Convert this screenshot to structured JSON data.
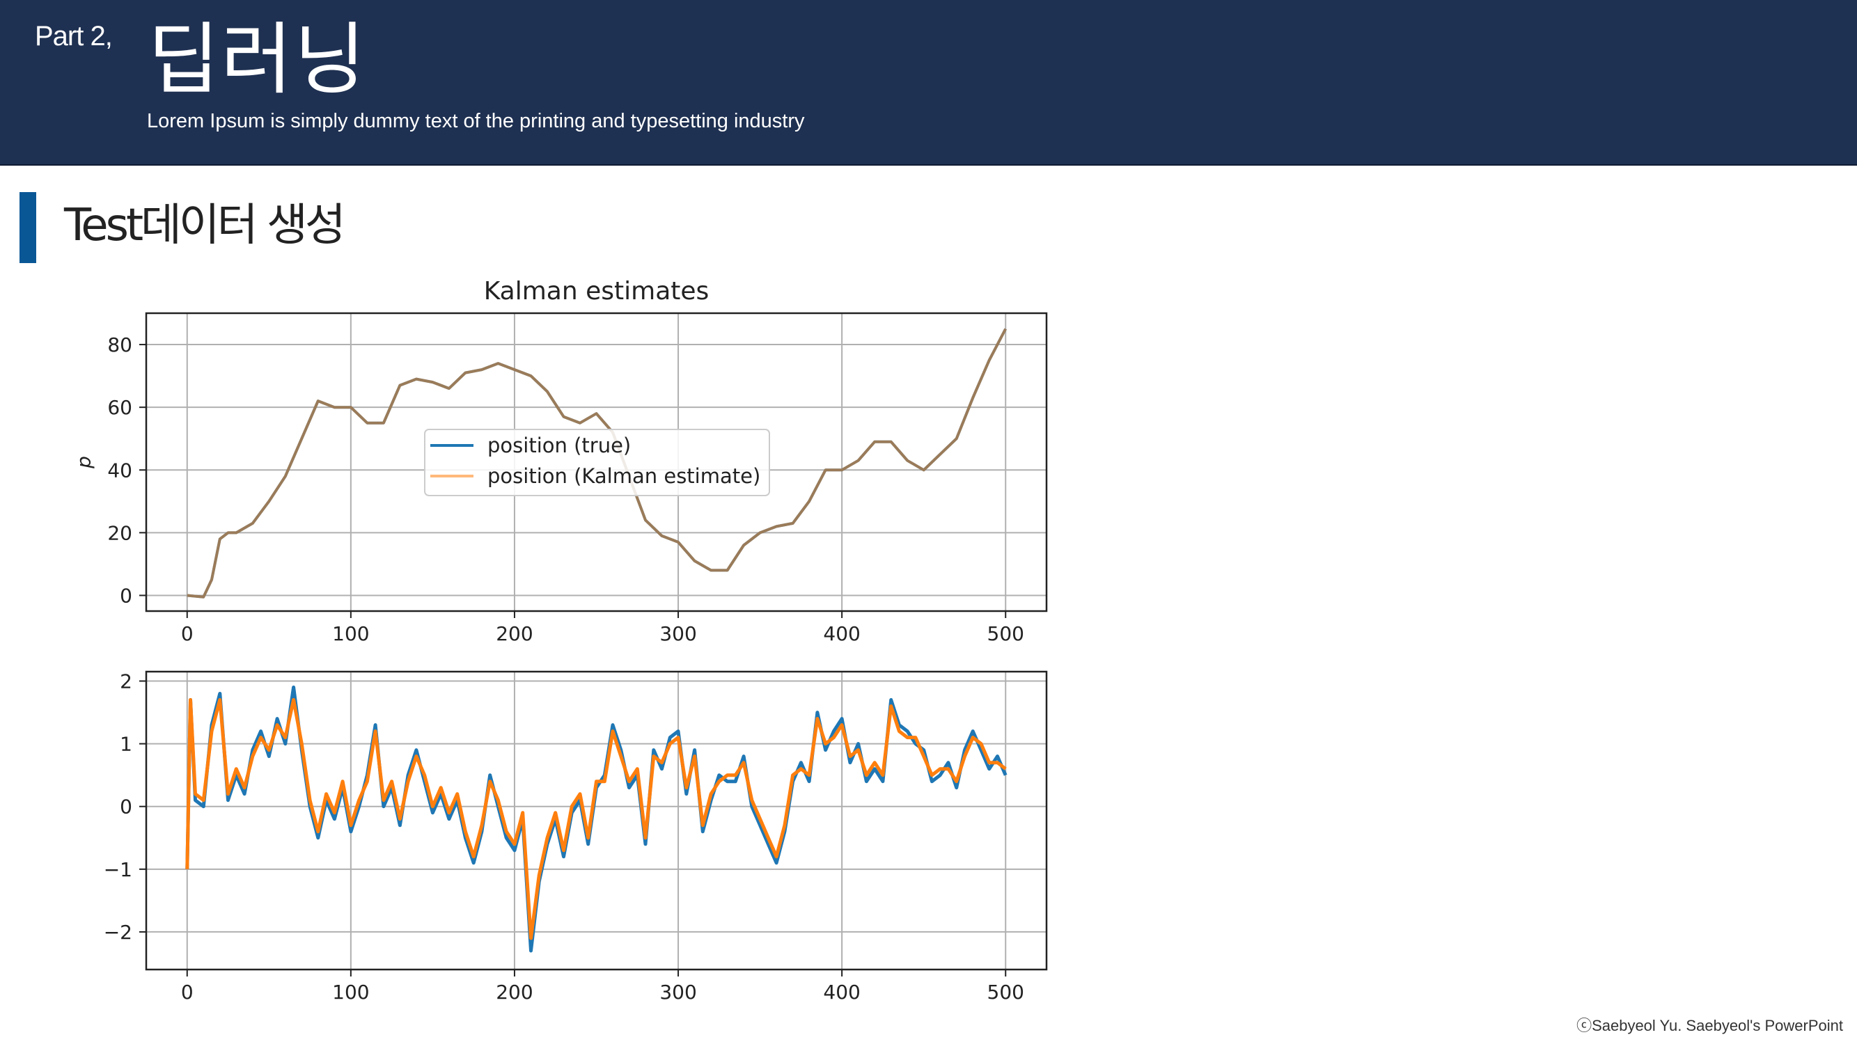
{
  "header": {
    "part_label": "Part 2,",
    "title": "딥러닝",
    "subtitle": "Lorem Ipsum is simply dummy text of the printing and typesetting industry"
  },
  "section": {
    "title": "Test데이터 생성"
  },
  "footer": {
    "copyright": "ⓒSaebyeol Yu. Saebyeol's PowerPoint"
  },
  "colors": {
    "banner": "#1f3152",
    "accent_bar": "#0a5796",
    "series_true": "#1f77b4",
    "series_kalman": "#ff7f0e"
  },
  "chart_data": [
    {
      "type": "line",
      "title": "Kalman estimates",
      "xlabel": "",
      "ylabel": "p",
      "xlim": [
        -25,
        525
      ],
      "ylim": [
        -5,
        90
      ],
      "xticks": [
        0,
        100,
        200,
        300,
        400,
        500
      ],
      "yticks": [
        0,
        20,
        40,
        60,
        80
      ],
      "grid": true,
      "legend_placement": "center",
      "series": [
        {
          "name": "position (true)",
          "x": [
            0,
            10,
            15,
            20,
            25,
            30,
            40,
            50,
            60,
            70,
            80,
            90,
            100,
            110,
            120,
            130,
            140,
            150,
            160,
            170,
            180,
            190,
            200,
            210,
            220,
            230,
            240,
            250,
            260,
            270,
            280,
            290,
            300,
            310,
            320,
            330,
            340,
            350,
            360,
            370,
            380,
            390,
            400,
            410,
            420,
            430,
            440,
            450,
            460,
            470,
            480,
            490,
            500
          ],
          "y": [
            0,
            -0.5,
            5,
            18,
            20,
            20,
            23,
            30,
            38,
            50,
            62,
            60,
            60,
            55,
            55,
            67,
            69,
            68,
            66,
            71,
            72,
            74,
            72,
            70,
            65,
            57,
            55,
            58,
            52,
            38,
            24,
            19,
            17,
            11,
            8,
            8,
            16,
            20,
            22,
            23,
            30,
            40,
            40,
            43,
            49,
            49,
            43,
            40,
            45,
            50,
            63,
            75,
            85
          ]
        },
        {
          "name": "position (Kalman estimate)",
          "x": [
            0,
            10,
            15,
            20,
            25,
            30,
            40,
            50,
            60,
            70,
            80,
            90,
            100,
            110,
            120,
            130,
            140,
            150,
            160,
            170,
            180,
            190,
            200,
            210,
            220,
            230,
            240,
            250,
            260,
            270,
            280,
            290,
            300,
            310,
            320,
            330,
            340,
            350,
            360,
            370,
            380,
            390,
            400,
            410,
            420,
            430,
            440,
            450,
            460,
            470,
            480,
            490,
            500
          ],
          "y": [
            0,
            -0.5,
            5,
            18,
            20,
            20,
            23,
            30,
            38,
            50,
            62,
            60,
            60,
            55,
            55,
            67,
            69,
            68,
            66,
            71,
            72,
            74,
            72,
            70,
            65,
            57,
            55,
            58,
            52,
            38,
            24,
            19,
            17,
            11,
            8,
            8,
            16,
            20,
            22,
            23,
            30,
            40,
            40,
            43,
            49,
            49,
            43,
            40,
            45,
            50,
            63,
            75,
            85
          ]
        }
      ]
    },
    {
      "type": "line",
      "title": "",
      "xlabel": "",
      "ylabel": "",
      "xlim": [
        -25,
        525
      ],
      "ylim": [
        -2.6,
        2.15
      ],
      "xticks": [
        0,
        100,
        200,
        300,
        400,
        500
      ],
      "yticks": [
        2,
        1,
        0,
        -1,
        -2
      ],
      "ytick_labels": [
        "2",
        "1",
        "0",
        "−1",
        "−2"
      ],
      "grid": true,
      "series": [
        {
          "name": "",
          "x": [
            0,
            2,
            5,
            10,
            15,
            20,
            25,
            30,
            35,
            40,
            45,
            50,
            55,
            60,
            65,
            70,
            75,
            80,
            85,
            90,
            95,
            100,
            105,
            110,
            115,
            120,
            125,
            130,
            135,
            140,
            145,
            150,
            155,
            160,
            165,
            170,
            175,
            180,
            185,
            190,
            195,
            200,
            205,
            210,
            215,
            220,
            225,
            230,
            235,
            240,
            245,
            250,
            255,
            260,
            265,
            270,
            275,
            280,
            285,
            290,
            295,
            300,
            305,
            310,
            315,
            320,
            325,
            330,
            335,
            340,
            345,
            350,
            355,
            360,
            365,
            370,
            375,
            380,
            385,
            390,
            395,
            400,
            405,
            410,
            415,
            420,
            425,
            430,
            435,
            440,
            445,
            450,
            455,
            460,
            465,
            470,
            475,
            480,
            485,
            490,
            495,
            500
          ],
          "y": [
            -1.0,
            1.7,
            0.1,
            0.0,
            1.3,
            1.8,
            0.1,
            0.5,
            0.2,
            0.9,
            1.2,
            0.8,
            1.4,
            1.0,
            1.9,
            0.9,
            0.0,
            -0.5,
            0.1,
            -0.2,
            0.3,
            -0.4,
            0.0,
            0.5,
            1.3,
            0.0,
            0.3,
            -0.3,
            0.5,
            0.9,
            0.4,
            -0.1,
            0.2,
            -0.2,
            0.1,
            -0.5,
            -0.9,
            -0.4,
            0.5,
            0.0,
            -0.5,
            -0.7,
            -0.2,
            -2.3,
            -1.2,
            -0.6,
            -0.2,
            -0.8,
            -0.1,
            0.1,
            -0.6,
            0.3,
            0.5,
            1.3,
            0.9,
            0.3,
            0.5,
            -0.6,
            0.9,
            0.6,
            1.1,
            1.2,
            0.2,
            0.9,
            -0.4,
            0.1,
            0.5,
            0.4,
            0.4,
            0.8,
            0.0,
            -0.3,
            -0.6,
            -0.9,
            -0.4,
            0.4,
            0.7,
            0.4,
            1.5,
            0.9,
            1.2,
            1.4,
            0.7,
            1.0,
            0.4,
            0.6,
            0.4,
            1.7,
            1.3,
            1.2,
            1.0,
            0.9,
            0.4,
            0.5,
            0.7,
            0.3,
            0.9,
            1.2,
            0.9,
            0.6,
            0.8,
            0.5
          ]
        },
        {
          "name": "",
          "x": [
            0,
            2,
            5,
            10,
            15,
            20,
            25,
            30,
            35,
            40,
            45,
            50,
            55,
            60,
            65,
            70,
            75,
            80,
            85,
            90,
            95,
            100,
            105,
            110,
            115,
            120,
            125,
            130,
            135,
            140,
            145,
            150,
            155,
            160,
            165,
            170,
            175,
            180,
            185,
            190,
            195,
            200,
            205,
            210,
            215,
            220,
            225,
            230,
            235,
            240,
            245,
            250,
            255,
            260,
            265,
            270,
            275,
            280,
            285,
            290,
            295,
            300,
            305,
            310,
            315,
            320,
            325,
            330,
            335,
            340,
            345,
            350,
            355,
            360,
            365,
            370,
            375,
            380,
            385,
            390,
            395,
            400,
            405,
            410,
            415,
            420,
            425,
            430,
            435,
            440,
            445,
            450,
            455,
            460,
            465,
            470,
            475,
            480,
            485,
            490,
            495,
            500
          ],
          "y": [
            -1.0,
            1.7,
            0.2,
            0.1,
            1.2,
            1.7,
            0.2,
            0.6,
            0.3,
            0.8,
            1.1,
            0.9,
            1.3,
            1.1,
            1.7,
            1.0,
            0.1,
            -0.4,
            0.2,
            -0.1,
            0.4,
            -0.3,
            0.1,
            0.4,
            1.2,
            0.1,
            0.4,
            -0.2,
            0.4,
            0.8,
            0.5,
            0.0,
            0.3,
            -0.1,
            0.2,
            -0.4,
            -0.8,
            -0.3,
            0.4,
            0.1,
            -0.4,
            -0.6,
            -0.1,
            -2.1,
            -1.1,
            -0.5,
            -0.1,
            -0.7,
            0.0,
            0.2,
            -0.5,
            0.4,
            0.4,
            1.2,
            0.8,
            0.4,
            0.6,
            -0.5,
            0.8,
            0.7,
            1.0,
            1.1,
            0.3,
            0.8,
            -0.3,
            0.2,
            0.4,
            0.5,
            0.5,
            0.7,
            0.1,
            -0.2,
            -0.5,
            -0.8,
            -0.3,
            0.5,
            0.6,
            0.5,
            1.4,
            1.0,
            1.1,
            1.3,
            0.8,
            0.9,
            0.5,
            0.7,
            0.5,
            1.6,
            1.2,
            1.1,
            1.1,
            0.8,
            0.5,
            0.6,
            0.6,
            0.4,
            0.8,
            1.1,
            1.0,
            0.7,
            0.7,
            0.6
          ]
        }
      ]
    }
  ]
}
